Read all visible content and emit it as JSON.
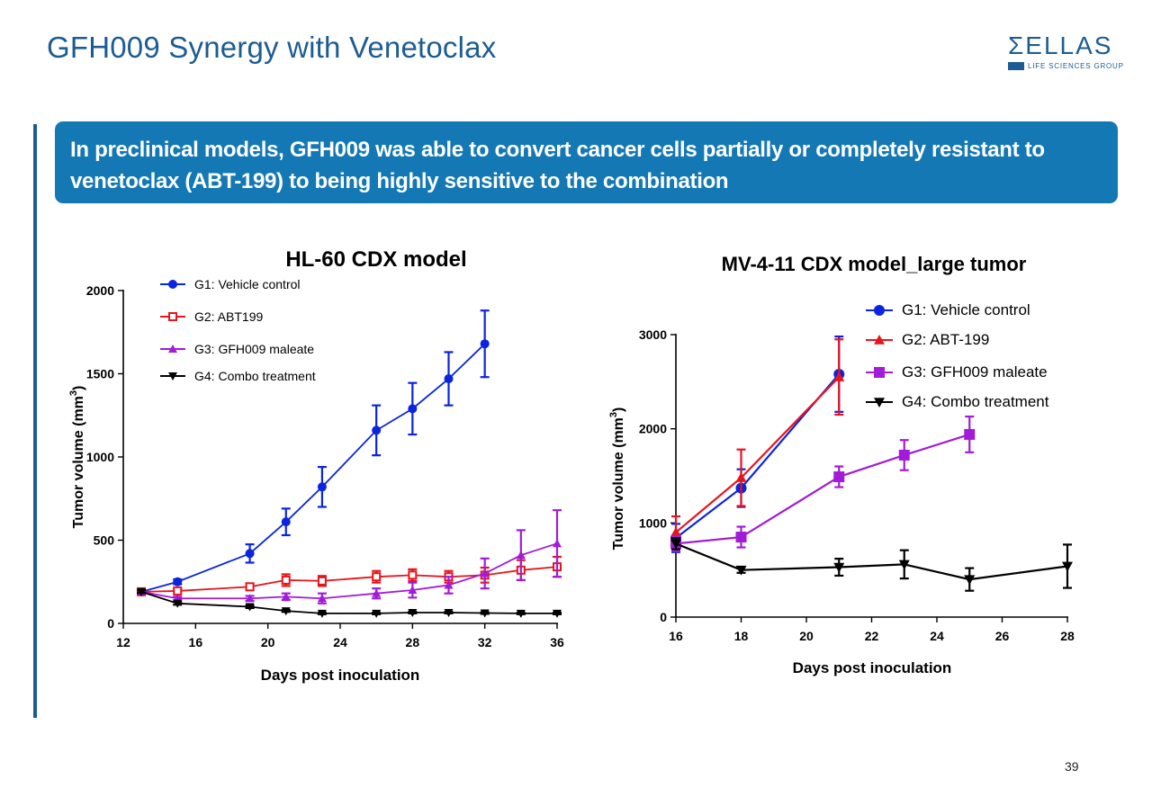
{
  "slide": {
    "title": "GFH009 Synergy with Venetoclax",
    "banner": "In preclinical models, GFH009 was able to convert cancer cells partially or completely resistant to venetoclax (ABT-199) to being highly sensitive to the combination",
    "page_number": "39",
    "logo": {
      "main": "ΣELLAS",
      "sub": "LIFE SCIENCES GROUP"
    }
  },
  "chart_data": [
    {
      "type": "line",
      "title": "HL-60 CDX model",
      "xlabel": "Days post inoculation",
      "ylabel": "Tumor volume (mm",
      "ylabel_sup": "3",
      "ylabel_end": ")",
      "xlim": [
        12,
        36
      ],
      "ylim": [
        0,
        2000
      ],
      "xticks": [
        12,
        16,
        20,
        24,
        28,
        32,
        36
      ],
      "yticks": [
        0,
        500,
        1000,
        1500,
        2000
      ],
      "legend_position": "top-left",
      "series": [
        {
          "name": "G1: Vehicle control",
          "color": "#0b24e0",
          "marker": "circle",
          "x": [
            13,
            15,
            19,
            21,
            23,
            26,
            28,
            30,
            32
          ],
          "values": [
            190,
            250,
            420,
            610,
            820,
            1160,
            1290,
            1470,
            1680
          ],
          "errors": [
            10,
            15,
            55,
            80,
            120,
            150,
            155,
            160,
            200
          ]
        },
        {
          "name": "G2: ABT199",
          "color": "#e8141c",
          "marker": "square-open",
          "x": [
            13,
            15,
            19,
            21,
            23,
            26,
            28,
            30,
            32,
            34,
            36
          ],
          "values": [
            190,
            195,
            220,
            260,
            255,
            280,
            290,
            280,
            290,
            320,
            340
          ],
          "errors": [
            10,
            10,
            20,
            35,
            30,
            35,
            35,
            35,
            45,
            60,
            60
          ]
        },
        {
          "name": "G3: GFH009 maleate",
          "color": "#a21bd8",
          "marker": "triangle-up",
          "x": [
            13,
            15,
            19,
            21,
            23,
            26,
            28,
            30,
            32,
            34,
            36
          ],
          "values": [
            190,
            150,
            150,
            160,
            150,
            180,
            200,
            230,
            300,
            410,
            480
          ],
          "errors": [
            10,
            10,
            15,
            20,
            30,
            30,
            45,
            50,
            90,
            150,
            200
          ]
        },
        {
          "name": "G4: Combo treatment",
          "color": "#000000",
          "marker": "triangle-down",
          "x": [
            13,
            15,
            19,
            21,
            23,
            26,
            28,
            30,
            32,
            34,
            36
          ],
          "values": [
            190,
            120,
            100,
            75,
            60,
            60,
            65,
            65,
            62,
            60,
            60
          ],
          "errors": [
            8,
            8,
            8,
            6,
            5,
            5,
            5,
            5,
            5,
            5,
            5
          ]
        }
      ]
    },
    {
      "type": "line",
      "title": "MV-4-11 CDX model_large tumor",
      "xlabel": "Days post inoculation",
      "ylabel": "Tumor volume (mm",
      "ylabel_sup": "3",
      "ylabel_end": ")",
      "xlim": [
        16,
        28
      ],
      "ylim": [
        0,
        3000
      ],
      "xticks": [
        16,
        18,
        20,
        22,
        24,
        26,
        28
      ],
      "yticks": [
        0,
        1000,
        2000,
        3000
      ],
      "legend_position": "top-right",
      "series": [
        {
          "name": "G1: Vehicle control",
          "color": "#0b24e0",
          "marker": "circle",
          "x": [
            16,
            18,
            21
          ],
          "values": [
            840,
            1370,
            2580
          ],
          "errors": [
            150,
            200,
            400
          ]
        },
        {
          "name": "G2: ABT-199",
          "color": "#e8141c",
          "marker": "triangle-up",
          "x": [
            16,
            18,
            21
          ],
          "values": [
            900,
            1480,
            2550
          ],
          "errors": [
            170,
            300,
            400
          ]
        },
        {
          "name": "G3: GFH009 maleate",
          "color": "#a21bd8",
          "marker": "square",
          "x": [
            16,
            18,
            21,
            23,
            25
          ],
          "values": [
            780,
            850,
            1490,
            1720,
            1940
          ],
          "errors": [
            80,
            110,
            110,
            160,
            190
          ]
        },
        {
          "name": "G4: Combo treatment",
          "color": "#000000",
          "marker": "triangle-down",
          "x": [
            16,
            18,
            21,
            23,
            25,
            28
          ],
          "values": [
            780,
            500,
            530,
            560,
            400,
            540
          ],
          "errors": [
            60,
            30,
            90,
            150,
            120,
            230
          ]
        }
      ]
    }
  ]
}
